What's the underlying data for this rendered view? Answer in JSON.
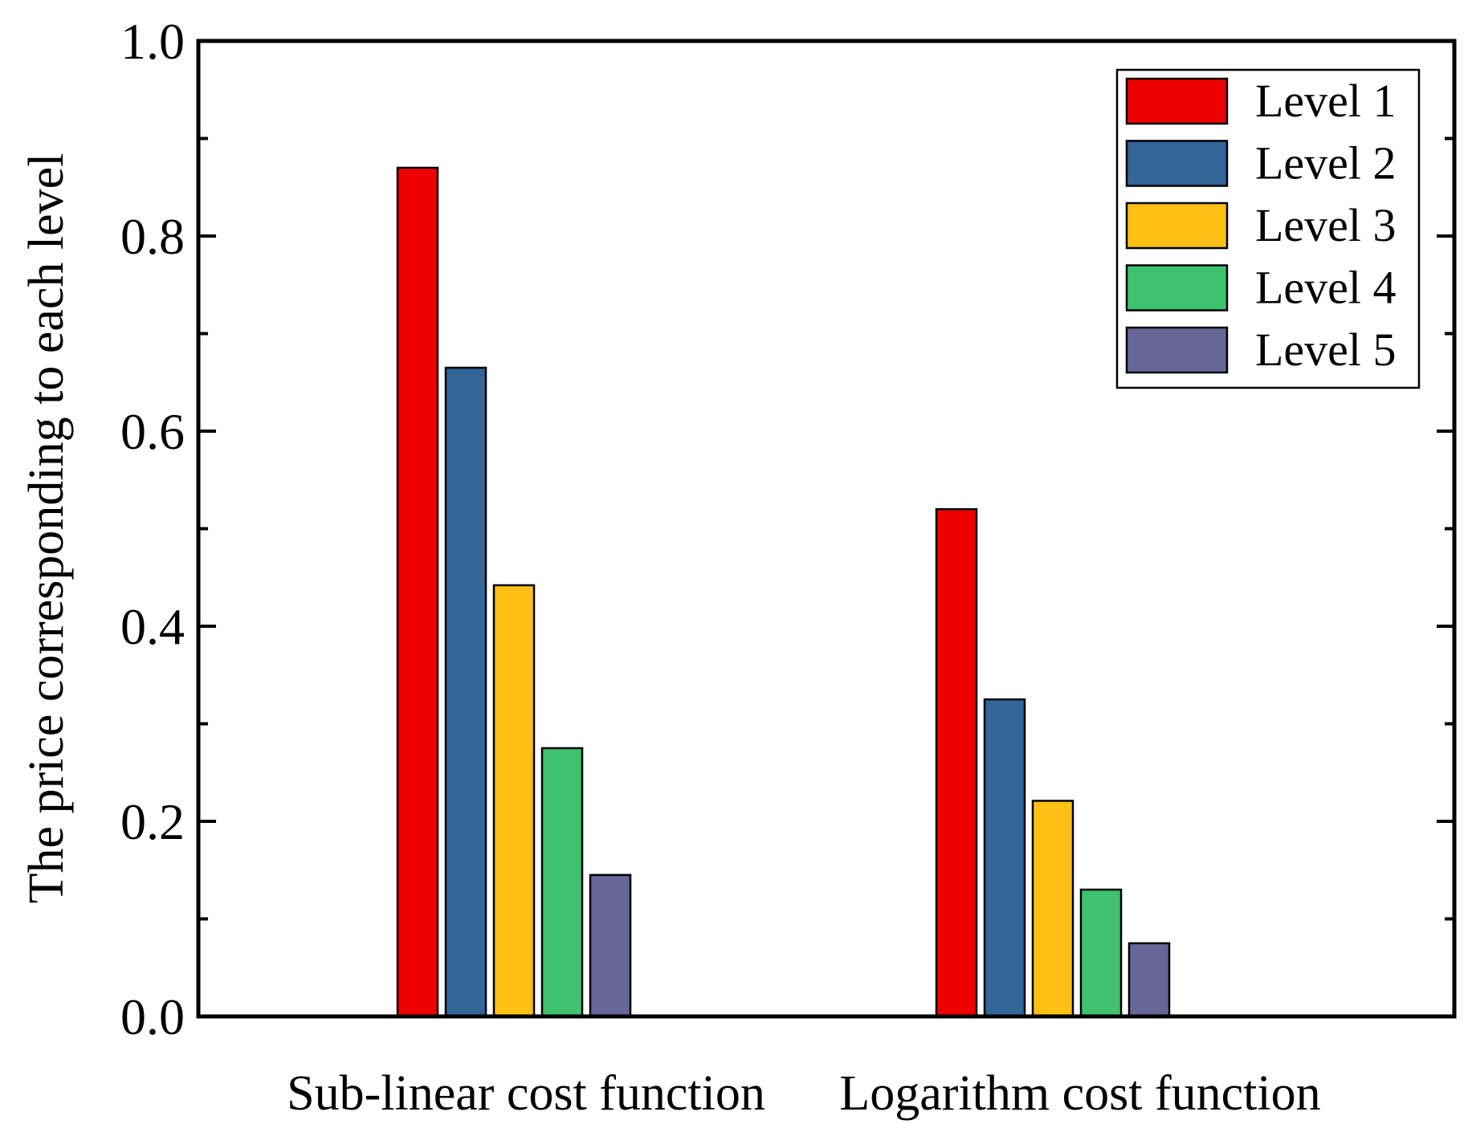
{
  "chart_data": {
    "type": "bar",
    "title": "",
    "xlabel": "",
    "ylabel": "The price corresponding to each level",
    "ylim": [
      0,
      1.0
    ],
    "yticks": [
      "0.0",
      "0.2",
      "0.4",
      "0.6",
      "0.8",
      "1.0"
    ],
    "categories": [
      "Sub-linear cost function",
      "Logarithm cost function"
    ],
    "series": [
      {
        "name": "Level 1",
        "color": "#ee0000",
        "values": [
          0.87,
          0.52
        ]
      },
      {
        "name": "Level 2",
        "color": "#336699",
        "values": [
          0.665,
          0.325
        ]
      },
      {
        "name": "Level 3",
        "color": "#ffc015",
        "values": [
          0.442,
          0.221
        ]
      },
      {
        "name": "Level 4",
        "color": "#3ec270",
        "values": [
          0.275,
          0.13
        ]
      },
      {
        "name": "Level 5",
        "color": "#666699",
        "values": [
          0.145,
          0.075
        ]
      }
    ],
    "legend": "top-right",
    "grid": false
  }
}
